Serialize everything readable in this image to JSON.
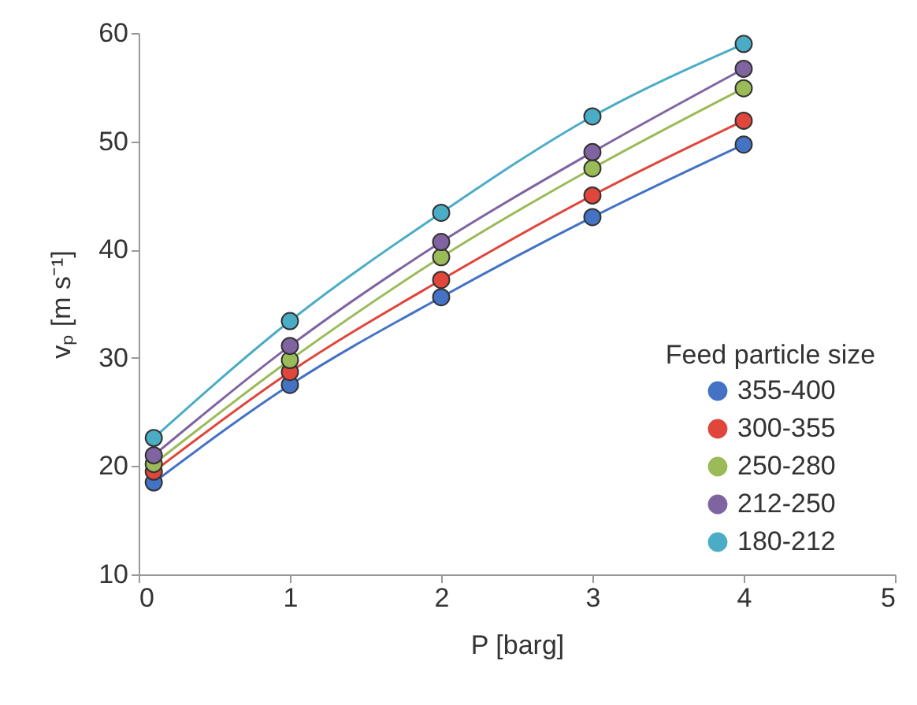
{
  "chart_data": {
    "type": "line",
    "xlabel": "P [barg]",
    "ylabel": "vₚ [m s⁻¹]",
    "legend_title": "Feed particle size",
    "legend": "bottom right",
    "marker": "circle",
    "grid": false,
    "x": [
      0.1,
      1,
      2,
      3,
      4
    ],
    "xlim": [
      0,
      5
    ],
    "xticks": [
      0,
      1,
      2,
      3,
      4,
      5
    ],
    "ylim": [
      10,
      60
    ],
    "yticks": [
      10,
      20,
      30,
      40,
      50,
      60
    ],
    "series": [
      {
        "name": "355-400",
        "color": "#4472c4",
        "values": [
          18.5,
          27.5,
          35.6,
          43.0,
          49.7
        ]
      },
      {
        "name": "300-355",
        "color": "#e0463c",
        "values": [
          19.5,
          28.7,
          37.2,
          45.0,
          51.9
        ]
      },
      {
        "name": "250-280",
        "color": "#9bbb59",
        "values": [
          20.2,
          29.8,
          39.3,
          47.5,
          54.9
        ]
      },
      {
        "name": "212-250",
        "color": "#8064a2",
        "values": [
          21.0,
          31.1,
          40.7,
          49.0,
          56.7
        ]
      },
      {
        "name": "180-212",
        "color": "#4bacc6",
        "values": [
          22.6,
          33.4,
          43.4,
          52.3,
          59.0
        ]
      }
    ]
  }
}
